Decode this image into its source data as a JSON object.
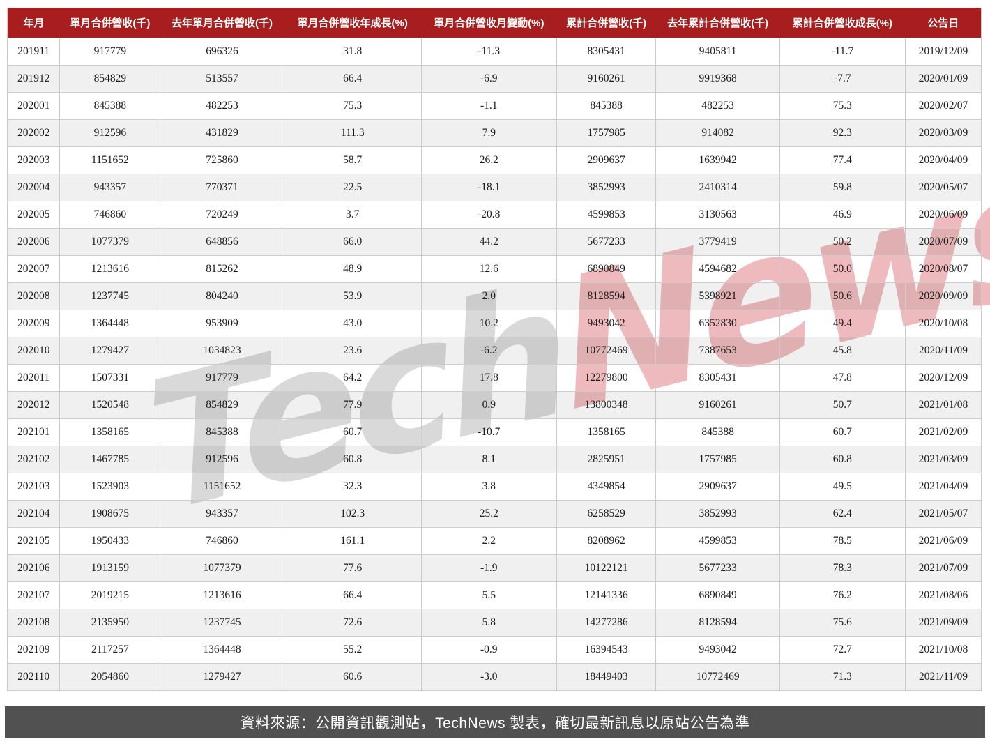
{
  "chart_data": {
    "type": "table",
    "title": "",
    "columns": [
      "年月",
      "單月合併營收(千)",
      "去年單月合併營收(千)",
      "單月合併營收年成長(%)",
      "單月合併營收月變動(%)",
      "累計合併營收(千)",
      "去年累計合併營收(千)",
      "累計合併營收成長(%)",
      "公告日"
    ],
    "rows": [
      [
        "201911",
        "917779",
        "696326",
        "31.8",
        "-11.3",
        "8305431",
        "9405811",
        "-11.7",
        "2019/12/09"
      ],
      [
        "201912",
        "854829",
        "513557",
        "66.4",
        "-6.9",
        "9160261",
        "9919368",
        "-7.7",
        "2020/01/09"
      ],
      [
        "202001",
        "845388",
        "482253",
        "75.3",
        "-1.1",
        "845388",
        "482253",
        "75.3",
        "2020/02/07"
      ],
      [
        "202002",
        "912596",
        "431829",
        "111.3",
        "7.9",
        "1757985",
        "914082",
        "92.3",
        "2020/03/09"
      ],
      [
        "202003",
        "1151652",
        "725860",
        "58.7",
        "26.2",
        "2909637",
        "1639942",
        "77.4",
        "2020/04/09"
      ],
      [
        "202004",
        "943357",
        "770371",
        "22.5",
        "-18.1",
        "3852993",
        "2410314",
        "59.8",
        "2020/05/07"
      ],
      [
        "202005",
        "746860",
        "720249",
        "3.7",
        "-20.8",
        "4599853",
        "3130563",
        "46.9",
        "2020/06/09"
      ],
      [
        "202006",
        "1077379",
        "648856",
        "66.0",
        "44.2",
        "5677233",
        "3779419",
        "50.2",
        "2020/07/09"
      ],
      [
        "202007",
        "1213616",
        "815262",
        "48.9",
        "12.6",
        "6890849",
        "4594682",
        "50.0",
        "2020/08/07"
      ],
      [
        "202008",
        "1237745",
        "804240",
        "53.9",
        "2.0",
        "8128594",
        "5398921",
        "50.6",
        "2020/09/09"
      ],
      [
        "202009",
        "1364448",
        "953909",
        "43.0",
        "10.2",
        "9493042",
        "6352830",
        "49.4",
        "2020/10/08"
      ],
      [
        "202010",
        "1279427",
        "1034823",
        "23.6",
        "-6.2",
        "10772469",
        "7387653",
        "45.8",
        "2020/11/09"
      ],
      [
        "202011",
        "1507331",
        "917779",
        "64.2",
        "17.8",
        "12279800",
        "8305431",
        "47.8",
        "2020/12/09"
      ],
      [
        "202012",
        "1520548",
        "854829",
        "77.9",
        "0.9",
        "13800348",
        "9160261",
        "50.7",
        "2021/01/08"
      ],
      [
        "202101",
        "1358165",
        "845388",
        "60.7",
        "-10.7",
        "1358165",
        "845388",
        "60.7",
        "2021/02/09"
      ],
      [
        "202102",
        "1467785",
        "912596",
        "60.8",
        "8.1",
        "2825951",
        "1757985",
        "60.8",
        "2021/03/09"
      ],
      [
        "202103",
        "1523903",
        "1151652",
        "32.3",
        "3.8",
        "4349854",
        "2909637",
        "49.5",
        "2021/04/09"
      ],
      [
        "202104",
        "1908675",
        "943357",
        "102.3",
        "25.2",
        "6258529",
        "3852993",
        "62.4",
        "2021/05/07"
      ],
      [
        "202105",
        "1950433",
        "746860",
        "161.1",
        "2.2",
        "8208962",
        "4599853",
        "78.5",
        "2021/06/09"
      ],
      [
        "202106",
        "1913159",
        "1077379",
        "77.6",
        "-1.9",
        "10122121",
        "5677233",
        "78.3",
        "2021/07/09"
      ],
      [
        "202107",
        "2019215",
        "1213616",
        "66.4",
        "5.5",
        "12141336",
        "6890849",
        "76.2",
        "2021/08/06"
      ],
      [
        "202108",
        "2135950",
        "1237745",
        "72.6",
        "5.8",
        "14277286",
        "8128594",
        "75.6",
        "2021/09/09"
      ],
      [
        "202109",
        "2117257",
        "1364448",
        "55.2",
        "-0.9",
        "16394543",
        "9493042",
        "72.7",
        "2021/10/08"
      ],
      [
        "202110",
        "2054860",
        "1279427",
        "60.6",
        "-3.0",
        "18449403",
        "10772469",
        "71.3",
        "2021/11/09"
      ]
    ],
    "layout_hints": {
      "header_style": "solid red band, white bold text",
      "row_striping": "white / light gray alternating",
      "grid": true
    }
  },
  "watermark": {
    "part1": "Tech",
    "part2": "News"
  },
  "footer": {
    "source_note": "資料來源：公開資訊觀測站，TechNews 製表，確切最新訊息以原站公告為準"
  },
  "colors": {
    "header_bg": "#a81e1e",
    "header_text": "#ffffff",
    "row_alt_bg": "#f0f0f0",
    "cell_border": "#cccccc",
    "footer_bg": "#515151",
    "footer_text": "#ffffff",
    "watermark_gray": "#828282",
    "watermark_red": "#c61c24"
  }
}
